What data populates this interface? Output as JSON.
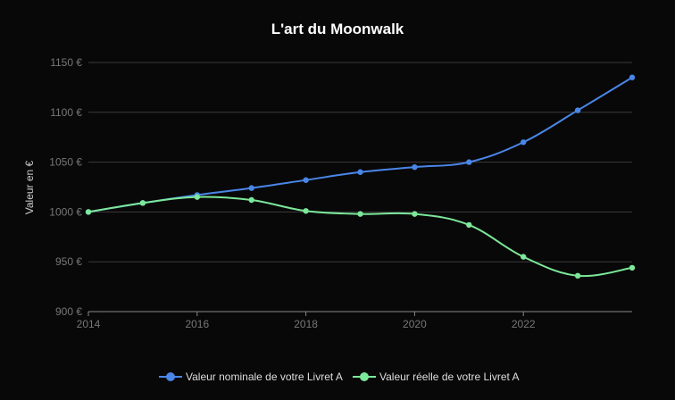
{
  "chart_data": {
    "type": "line",
    "title": "L'art du Moonwalk",
    "xlabel": "",
    "ylabel": "Valeur en €",
    "x": [
      2014,
      2015,
      2016,
      2017,
      2018,
      2019,
      2020,
      2021,
      2022,
      2023,
      2024
    ],
    "xlim": [
      2014,
      2024
    ],
    "ylim": [
      900,
      1150
    ],
    "x_ticks": [
      "2014",
      "2016",
      "2018",
      "2020",
      "2022"
    ],
    "y_ticks": [
      "900 €",
      "950 €",
      "1000 €",
      "1050 €",
      "1100 €",
      "1150 €"
    ],
    "grid": true,
    "legend_position": "bottom",
    "series": [
      {
        "name": "Valeur nominale de votre Livret A",
        "color": "#4a86e8",
        "values": [
          1000,
          1009,
          1017,
          1024,
          1032,
          1040,
          1045,
          1050,
          1070,
          1102,
          1135
        ]
      },
      {
        "name": "Valeur réelle de votre Livret A",
        "color": "#7ce89a",
        "values": [
          1000,
          1009,
          1015,
          1012,
          1001,
          998,
          998,
          987,
          955,
          936,
          944
        ]
      }
    ]
  }
}
